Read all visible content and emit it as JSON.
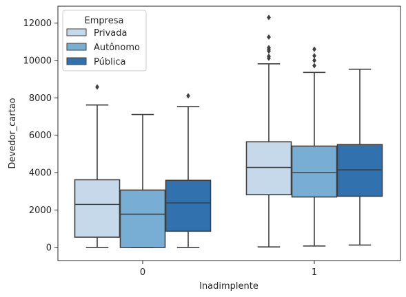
{
  "chart_data": {
    "type": "boxplot",
    "xlabel": "Inadimplente",
    "ylabel": "Devedor_cartao",
    "categories": [
      "0",
      "1"
    ],
    "ylim": [
      -700,
      12900
    ],
    "yticks": [
      0,
      2000,
      4000,
      6000,
      8000,
      10000,
      12000
    ],
    "ytick_labels": [
      "0",
      "2000",
      "4000",
      "6000",
      "8000",
      "10000",
      "12000"
    ],
    "legend": {
      "title": "Empresa",
      "position": "top-left"
    },
    "series": [
      {
        "name": "Privada",
        "color": "#c6d9ea",
        "boxes": [
          {
            "category": "0",
            "whislo": 0,
            "q1": 550,
            "med": 2300,
            "q3": 3620,
            "whishi": 7620,
            "fliers": [
              8580
            ]
          },
          {
            "category": "1",
            "whislo": 30,
            "q1": 2820,
            "med": 4280,
            "q3": 5650,
            "whishi": 9820,
            "fliers": [
              10120,
              10220,
              10500,
              10600,
              10680,
              11250,
              12300
            ]
          }
        ]
      },
      {
        "name": "Autônomo",
        "color": "#78aed3",
        "boxes": [
          {
            "category": "0",
            "whislo": 0,
            "q1": 0,
            "med": 1780,
            "q3": 3070,
            "whishi": 7110,
            "fliers": []
          },
          {
            "category": "1",
            "whislo": 80,
            "q1": 2700,
            "med": 4000,
            "q3": 5420,
            "whishi": 9360,
            "fliers": [
              9720,
              10000,
              10250,
              10600
            ]
          }
        ]
      },
      {
        "name": "Pública",
        "color": "#3171ad",
        "boxes": [
          {
            "category": "0",
            "whislo": 0,
            "q1": 870,
            "med": 2380,
            "q3": 3590,
            "whishi": 7530,
            "fliers": [
              8110
            ]
          },
          {
            "category": "1",
            "whislo": 130,
            "q1": 2740,
            "med": 4150,
            "q3": 5500,
            "whishi": 9530,
            "fliers": []
          }
        ]
      }
    ]
  }
}
